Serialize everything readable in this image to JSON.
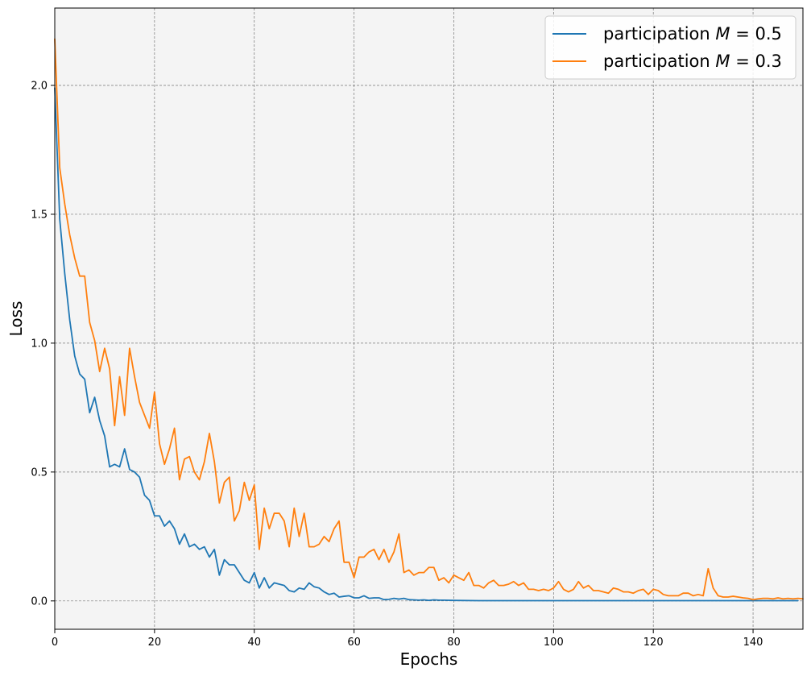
{
  "chart_data": {
    "type": "line",
    "title": "",
    "xlabel": "Epochs",
    "ylabel": "Loss",
    "xlim": [
      0,
      150
    ],
    "ylim": [
      -0.11,
      2.3
    ],
    "xticks": [
      0,
      20,
      40,
      60,
      80,
      100,
      120,
      140
    ],
    "yticks": [
      0.0,
      0.5,
      1.0,
      1.5,
      2.0
    ],
    "xtick_labels": [
      "0",
      "20",
      "40",
      "60",
      "80",
      "100",
      "120",
      "140"
    ],
    "ytick_labels": [
      "0.0",
      "0.5",
      "1.0",
      "1.5",
      "2.0"
    ],
    "grid": true,
    "grid_style": "dashed",
    "legend_position": "top-right",
    "colors": {
      "background": "#f4f4f4",
      "grid": "#777777",
      "series1": "#1f77b4",
      "series2": "#ff7f0e"
    },
    "series": [
      {
        "name": "participation M = 0.5",
        "legend_prefix": "participation ",
        "legend_var": "M",
        "legend_suffix": " = 0.5",
        "color": "#1f77b4",
        "points": [
          [
            0,
            1.99
          ],
          [
            1,
            1.48
          ],
          [
            2,
            1.27
          ],
          [
            3,
            1.09
          ],
          [
            4,
            0.95
          ],
          [
            5,
            0.88
          ],
          [
            6,
            0.86
          ],
          [
            7,
            0.73
          ],
          [
            8,
            0.79
          ],
          [
            9,
            0.7
          ],
          [
            10,
            0.64
          ],
          [
            11,
            0.52
          ],
          [
            12,
            0.53
          ],
          [
            13,
            0.52
          ],
          [
            14,
            0.59
          ],
          [
            15,
            0.51
          ],
          [
            16,
            0.5
          ],
          [
            17,
            0.48
          ],
          [
            18,
            0.41
          ],
          [
            19,
            0.39
          ],
          [
            20,
            0.33
          ],
          [
            21,
            0.33
          ],
          [
            22,
            0.29
          ],
          [
            23,
            0.31
          ],
          [
            24,
            0.28
          ],
          [
            25,
            0.22
          ],
          [
            26,
            0.26
          ],
          [
            27,
            0.21
          ],
          [
            28,
            0.22
          ],
          [
            29,
            0.2
          ],
          [
            30,
            0.21
          ],
          [
            31,
            0.17
          ],
          [
            32,
            0.2
          ],
          [
            33,
            0.1
          ],
          [
            34,
            0.16
          ],
          [
            35,
            0.14
          ],
          [
            36,
            0.14
          ],
          [
            37,
            0.11
          ],
          [
            38,
            0.08
          ],
          [
            39,
            0.07
          ],
          [
            40,
            0.11
          ],
          [
            41,
            0.05
          ],
          [
            42,
            0.09
          ],
          [
            43,
            0.05
          ],
          [
            44,
            0.07
          ],
          [
            45,
            0.065
          ],
          [
            46,
            0.06
          ],
          [
            47,
            0.04
          ],
          [
            48,
            0.035
          ],
          [
            49,
            0.05
          ],
          [
            50,
            0.045
          ],
          [
            51,
            0.07
          ],
          [
            52,
            0.055
          ],
          [
            53,
            0.05
          ],
          [
            54,
            0.035
          ],
          [
            55,
            0.025
          ],
          [
            56,
            0.03
          ],
          [
            57,
            0.015
          ],
          [
            58,
            0.018
          ],
          [
            59,
            0.02
          ],
          [
            60,
            0.012
          ],
          [
            61,
            0.012
          ],
          [
            62,
            0.02
          ],
          [
            63,
            0.01
          ],
          [
            64,
            0.012
          ],
          [
            65,
            0.012
          ],
          [
            66,
            0.005
          ],
          [
            67,
            0.006
          ],
          [
            68,
            0.01
          ],
          [
            69,
            0.007
          ],
          [
            70,
            0.01
          ],
          [
            71,
            0.005
          ],
          [
            72,
            0.004
          ],
          [
            73,
            0.003
          ],
          [
            74,
            0.004
          ],
          [
            75,
            0.002
          ],
          [
            76,
            0.004
          ],
          [
            77,
            0.003
          ],
          [
            78,
            0.003
          ],
          [
            80,
            0.002
          ],
          [
            85,
            0.001
          ],
          [
            90,
            0.001
          ],
          [
            100,
            0.001
          ],
          [
            110,
            0.001
          ],
          [
            120,
            0.001
          ],
          [
            130,
            0.001
          ],
          [
            140,
            0.001
          ],
          [
            149,
            0.001
          ]
        ]
      },
      {
        "name": "participation M = 0.3",
        "legend_prefix": "participation ",
        "legend_var": "M",
        "legend_suffix": " = 0.3",
        "color": "#ff7f0e",
        "points": [
          [
            0,
            2.18
          ],
          [
            1,
            1.68
          ],
          [
            2,
            1.54
          ],
          [
            3,
            1.42
          ],
          [
            4,
            1.33
          ],
          [
            5,
            1.26
          ],
          [
            6,
            1.26
          ],
          [
            7,
            1.08
          ],
          [
            8,
            1.01
          ],
          [
            9,
            0.89
          ],
          [
            10,
            0.98
          ],
          [
            11,
            0.9
          ],
          [
            12,
            0.68
          ],
          [
            13,
            0.87
          ],
          [
            14,
            0.72
          ],
          [
            15,
            0.98
          ],
          [
            16,
            0.87
          ],
          [
            17,
            0.77
          ],
          [
            18,
            0.72
          ],
          [
            19,
            0.67
          ],
          [
            20,
            0.81
          ],
          [
            21,
            0.61
          ],
          [
            22,
            0.53
          ],
          [
            23,
            0.59
          ],
          [
            24,
            0.67
          ],
          [
            25,
            0.47
          ],
          [
            26,
            0.55
          ],
          [
            27,
            0.56
          ],
          [
            28,
            0.5
          ],
          [
            29,
            0.47
          ],
          [
            30,
            0.54
          ],
          [
            31,
            0.65
          ],
          [
            32,
            0.54
          ],
          [
            33,
            0.38
          ],
          [
            34,
            0.46
          ],
          [
            35,
            0.48
          ],
          [
            36,
            0.31
          ],
          [
            37,
            0.35
          ],
          [
            38,
            0.46
          ],
          [
            39,
            0.39
          ],
          [
            40,
            0.45
          ],
          [
            41,
            0.2
          ],
          [
            42,
            0.36
          ],
          [
            43,
            0.28
          ],
          [
            44,
            0.34
          ],
          [
            45,
            0.34
          ],
          [
            46,
            0.31
          ],
          [
            47,
            0.21
          ],
          [
            48,
            0.36
          ],
          [
            49,
            0.25
          ],
          [
            50,
            0.34
          ],
          [
            51,
            0.21
          ],
          [
            52,
            0.21
          ],
          [
            53,
            0.22
          ],
          [
            54,
            0.25
          ],
          [
            55,
            0.23
          ],
          [
            56,
            0.28
          ],
          [
            57,
            0.31
          ],
          [
            58,
            0.15
          ],
          [
            59,
            0.15
          ],
          [
            60,
            0.09
          ],
          [
            61,
            0.17
          ],
          [
            62,
            0.17
          ],
          [
            63,
            0.19
          ],
          [
            64,
            0.2
          ],
          [
            65,
            0.16
          ],
          [
            66,
            0.2
          ],
          [
            67,
            0.15
          ],
          [
            68,
            0.19
          ],
          [
            69,
            0.26
          ],
          [
            70,
            0.11
          ],
          [
            71,
            0.12
          ],
          [
            72,
            0.1
          ],
          [
            73,
            0.11
          ],
          [
            74,
            0.11
          ],
          [
            75,
            0.13
          ],
          [
            76,
            0.13
          ],
          [
            77,
            0.08
          ],
          [
            78,
            0.09
          ],
          [
            79,
            0.07
          ],
          [
            80,
            0.1
          ],
          [
            81,
            0.09
          ],
          [
            82,
            0.08
          ],
          [
            83,
            0.11
          ],
          [
            84,
            0.06
          ],
          [
            85,
            0.06
          ],
          [
            86,
            0.05
          ],
          [
            87,
            0.07
          ],
          [
            88,
            0.08
          ],
          [
            89,
            0.06
          ],
          [
            90,
            0.06
          ],
          [
            91,
            0.065
          ],
          [
            92,
            0.075
          ],
          [
            93,
            0.06
          ],
          [
            94,
            0.07
          ],
          [
            95,
            0.045
          ],
          [
            96,
            0.045
          ],
          [
            97,
            0.04
          ],
          [
            98,
            0.045
          ],
          [
            99,
            0.04
          ],
          [
            100,
            0.05
          ],
          [
            101,
            0.075
          ],
          [
            102,
            0.045
          ],
          [
            103,
            0.035
          ],
          [
            104,
            0.045
          ],
          [
            105,
            0.075
          ],
          [
            106,
            0.05
          ],
          [
            107,
            0.06
          ],
          [
            108,
            0.04
          ],
          [
            109,
            0.04
          ],
          [
            110,
            0.035
          ],
          [
            111,
            0.03
          ],
          [
            112,
            0.05
          ],
          [
            113,
            0.045
          ],
          [
            114,
            0.035
          ],
          [
            115,
            0.035
          ],
          [
            116,
            0.03
          ],
          [
            117,
            0.04
          ],
          [
            118,
            0.045
          ],
          [
            119,
            0.025
          ],
          [
            120,
            0.045
          ],
          [
            121,
            0.04
          ],
          [
            122,
            0.025
          ],
          [
            123,
            0.02
          ],
          [
            124,
            0.02
          ],
          [
            125,
            0.02
          ],
          [
            126,
            0.03
          ],
          [
            127,
            0.03
          ],
          [
            128,
            0.02
          ],
          [
            129,
            0.025
          ],
          [
            130,
            0.02
          ],
          [
            131,
            0.125
          ],
          [
            132,
            0.05
          ],
          [
            133,
            0.02
          ],
          [
            134,
            0.015
          ],
          [
            135,
            0.015
          ],
          [
            136,
            0.018
          ],
          [
            137,
            0.015
          ],
          [
            138,
            0.012
          ],
          [
            139,
            0.01
          ],
          [
            140,
            0.005
          ],
          [
            141,
            0.008
          ],
          [
            142,
            0.01
          ],
          [
            143,
            0.01
          ],
          [
            144,
            0.008
          ],
          [
            145,
            0.012
          ],
          [
            146,
            0.008
          ],
          [
            147,
            0.01
          ],
          [
            148,
            0.008
          ],
          [
            149,
            0.01
          ],
          [
            150,
            0.008
          ]
        ]
      }
    ]
  }
}
